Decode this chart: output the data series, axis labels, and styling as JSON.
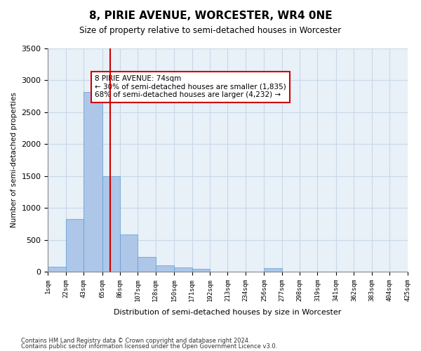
{
  "title": "8, PIRIE AVENUE, WORCESTER, WR4 0NE",
  "subtitle": "Size of property relative to semi-detached houses in Worcester",
  "xlabel": "Distribution of semi-detached houses by size in Worcester",
  "ylabel": "Number of semi-detached properties",
  "footer_line1": "Contains HM Land Registry data © Crown copyright and database right 2024.",
  "footer_line2": "Contains public sector information licensed under the Open Government Licence v3.0.",
  "annotation_line1": "8 PIRIE AVENUE: 74sqm",
  "annotation_line2": "← 30% of semi-detached houses are smaller (1,835)",
  "annotation_line3": "68% of semi-detached houses are larger (4,232) →",
  "property_size": 74,
  "bar_color": "#aec6e8",
  "bar_edgecolor": "#5a9fd4",
  "vline_color": "#cc0000",
  "annotation_box_edgecolor": "#cc0000",
  "background_color": "#ffffff",
  "grid_color": "#c8d8e8",
  "bins": [
    1,
    22,
    43,
    65,
    86,
    107,
    128,
    150,
    171,
    192,
    213,
    234,
    256,
    277,
    298,
    319,
    341,
    362,
    383,
    404,
    425
  ],
  "bin_labels": [
    "1sqm",
    "22sqm",
    "43sqm",
    "65sqm",
    "86sqm",
    "107sqm",
    "128sqm",
    "150sqm",
    "171sqm",
    "192sqm",
    "213sqm",
    "234sqm",
    "256sqm",
    "277sqm",
    "298sqm",
    "319sqm",
    "341sqm",
    "362sqm",
    "383sqm",
    "404sqm",
    "425sqm"
  ],
  "values": [
    80,
    820,
    2820,
    1500,
    580,
    235,
    100,
    70,
    45,
    0,
    0,
    0,
    50,
    0,
    0,
    0,
    0,
    0,
    0,
    0
  ],
  "ylim": [
    0,
    3500
  ],
  "yticks": [
    0,
    500,
    1000,
    1500,
    2000,
    2500,
    3000,
    3500
  ]
}
